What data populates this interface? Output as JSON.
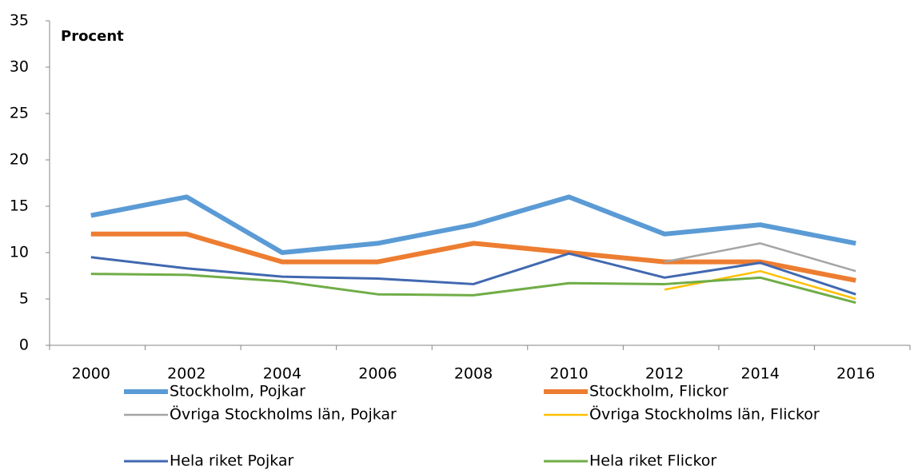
{
  "chart_data": {
    "type": "line",
    "y_label": "Procent",
    "categories": [
      "2000",
      "2002",
      "2004",
      "2006",
      "2008",
      "2010",
      "2012",
      "2014",
      "2016"
    ],
    "series": [
      {
        "name": "Stockholm, Pojkar",
        "color": "#5b9bd5",
        "values": [
          14,
          16,
          10,
          11,
          13,
          16,
          12,
          13,
          11
        ]
      },
      {
        "name": "Stockholm, Flickor",
        "color": "#ed7d31",
        "values": [
          12,
          12,
          9,
          9,
          11,
          10,
          9,
          9,
          7
        ]
      },
      {
        "name": "Övriga Stockholms län, Pojkar",
        "color": "#a5a5a5",
        "values": [
          null,
          null,
          null,
          null,
          null,
          null,
          9,
          11,
          8
        ]
      },
      {
        "name": "Övriga Stockholms län, Flickor",
        "color": "#ffc000",
        "values": [
          null,
          null,
          null,
          null,
          null,
          null,
          6,
          8,
          5
        ]
      },
      {
        "name": "Hela riket Pojkar",
        "color": "#4168b0",
        "values": [
          9.5,
          8.3,
          7.4,
          7.2,
          6.6,
          9.9,
          7.3,
          8.9,
          5.5
        ]
      },
      {
        "name": "Hela riket Flickor",
        "color": "#70ad47",
        "values": [
          7.7,
          7.6,
          6.9,
          5.5,
          5.4,
          6.7,
          6.6,
          7.3,
          4.6
        ]
      }
    ],
    "ylim": [
      0,
      35
    ],
    "yticks": [
      0,
      5,
      10,
      15,
      20,
      25,
      30,
      35
    ],
    "grid": false
  }
}
